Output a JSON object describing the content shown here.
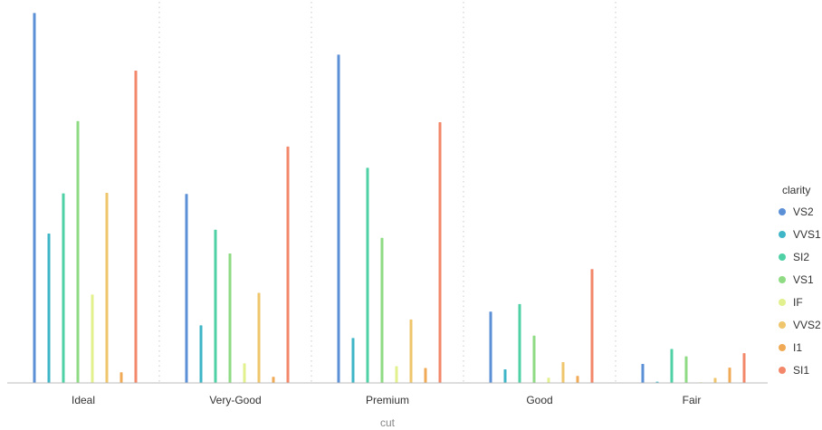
{
  "chart_data": {
    "type": "bar",
    "xlabel": "cut",
    "ylabel": "",
    "ylim": [
      0,
      5200
    ],
    "grid": "vertical dotted separators between categories",
    "legend": {
      "title": "clarity",
      "position": "right"
    },
    "categories": [
      "Ideal",
      "Very-Good",
      "Premium",
      "Good",
      "Fair"
    ],
    "series": [
      {
        "name": "VS2",
        "color": "#5b8fd6",
        "values": [
          5071,
          2591,
          4500,
          978,
          261
        ]
      },
      {
        "name": "VVS1",
        "color": "#3fb6c7",
        "values": [
          2047,
          789,
          616,
          186,
          17
        ]
      },
      {
        "name": "SI2",
        "color": "#4fd1a5",
        "values": [
          2598,
          2100,
          2949,
          1081,
          466
        ]
      },
      {
        "name": "VS1",
        "color": "#8edb84",
        "values": [
          3589,
          1775,
          1989,
          648,
          365
        ]
      },
      {
        "name": "IF",
        "color": "#e2f08e",
        "values": [
          1212,
          268,
          230,
          71,
          9
        ]
      },
      {
        "name": "VVS2",
        "color": "#efc66b",
        "values": [
          2606,
          1235,
          870,
          286,
          69
        ]
      },
      {
        "name": "I1",
        "color": "#f0a955",
        "values": [
          146,
          84,
          205,
          96,
          210
        ]
      },
      {
        "name": "SI1",
        "color": "#f2876a",
        "values": [
          4282,
          3240,
          3575,
          1560,
          408
        ]
      }
    ]
  }
}
